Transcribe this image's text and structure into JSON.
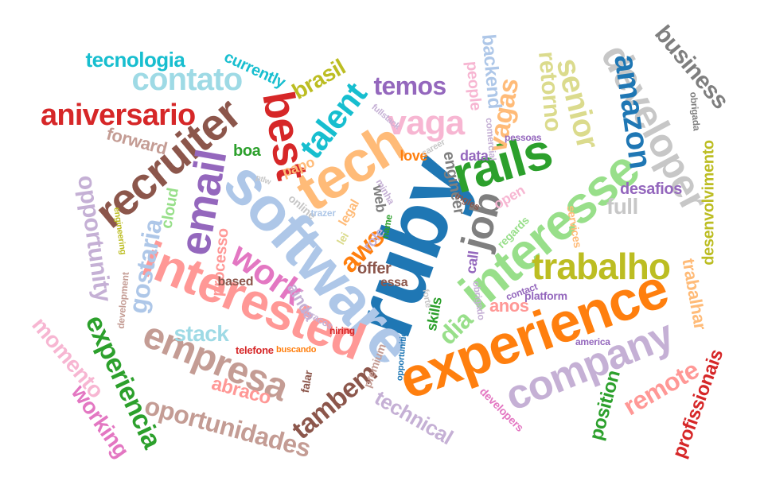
{
  "words": [
    {
      "text": "ruby",
      "color": "#1f77b4",
      "rotation": "vertical"
    },
    {
      "text": "software",
      "color": "#aec7e8",
      "rotation": "horizontal-tilt"
    },
    {
      "text": "experience",
      "color": "#ff7f0e",
      "rotation": "horizontal-tilt"
    },
    {
      "text": "interested",
      "color": "#ff9896",
      "rotation": "horizontal-tilt"
    },
    {
      "text": "tech",
      "color": "#ffbb78",
      "rotation": "horizontal-tilt"
    },
    {
      "text": "interesse",
      "color": "#98df8a",
      "rotation": "horizontal-tilt"
    },
    {
      "text": "rails",
      "color": "#2ca02c",
      "rotation": "horizontal-tilt"
    },
    {
      "text": "company",
      "color": "#c5b0d5",
      "rotation": "horizontal-tilt"
    },
    {
      "text": "recruiter",
      "color": "#8c564b",
      "rotation": "horizontal-tilt"
    },
    {
      "text": "empresa",
      "color": "#c49c94",
      "rotation": "horizontal-tilt"
    },
    {
      "text": "developer",
      "color": "#c7c7c7",
      "rotation": "vertical"
    },
    {
      "text": "best",
      "color": "#d62728",
      "rotation": "vertical"
    },
    {
      "text": "email",
      "color": "#9467bd",
      "rotation": "vertical"
    },
    {
      "text": "job",
      "color": "#7f7f7f",
      "rotation": "vertical"
    },
    {
      "text": "work",
      "color": "#e377c2",
      "rotation": "horizontal-tilt"
    },
    {
      "text": "vaga",
      "color": "#f7b6d2",
      "rotation": "horizontal"
    },
    {
      "text": "trabalho",
      "color": "#bcbd22",
      "rotation": "horizontal"
    },
    {
      "text": "senior",
      "color": "#dbdb8d",
      "rotation": "vertical"
    },
    {
      "text": "amazon",
      "color": "#1f77b4",
      "rotation": "vertical"
    },
    {
      "text": "talent",
      "color": "#17becf",
      "rotation": "horizontal-tilt"
    },
    {
      "text": "contato",
      "color": "#9edae5",
      "rotation": "horizontal"
    },
    {
      "text": "aniversario",
      "color": "#d62728",
      "rotation": "horizontal"
    },
    {
      "text": "oportunidades",
      "color": "#c49c94",
      "rotation": "horizontal-tilt"
    },
    {
      "text": "experiencia",
      "color": "#2ca02c",
      "rotation": "vertical"
    },
    {
      "text": "opportunity",
      "color": "#c5b0d5",
      "rotation": "vertical"
    },
    {
      "text": "gostaria",
      "color": "#aec7e8",
      "rotation": "vertical"
    },
    {
      "text": "tambem",
      "color": "#8c564b",
      "rotation": "horizontal-tilt"
    },
    {
      "text": "business",
      "color": "#7f7f7f",
      "rotation": "vertical"
    },
    {
      "text": "desenvolvimento",
      "color": "#bcbd22",
      "rotation": "vertical"
    },
    {
      "text": "remote",
      "color": "#ff9896",
      "rotation": "horizontal-tilt"
    },
    {
      "text": "momento",
      "color": "#f7b6d2",
      "rotation": "vertical"
    },
    {
      "text": "working",
      "color": "#e377c2",
      "rotation": "vertical"
    },
    {
      "text": "vagas",
      "color": "#ffbb78",
      "rotation": "vertical"
    },
    {
      "text": "retorno",
      "color": "#dbdb8d",
      "rotation": "vertical"
    },
    {
      "text": "tecnologia",
      "color": "#17becf",
      "rotation": "horizontal"
    },
    {
      "text": "temos",
      "color": "#9467bd",
      "rotation": "horizontal"
    },
    {
      "text": "brasil",
      "color": "#bcbd22",
      "rotation": "horizontal-tilt"
    },
    {
      "text": "backend",
      "color": "#aec7e8",
      "rotation": "vertical"
    },
    {
      "text": "people",
      "color": "#f7b6d2",
      "rotation": "vertical"
    },
    {
      "text": "aws",
      "color": "#ff7f0e",
      "rotation": "horizontal-tilt"
    },
    {
      "text": "dia",
      "color": "#98df8a",
      "rotation": "horizontal-tilt"
    },
    {
      "text": "stack",
      "color": "#9edae5",
      "rotation": "horizontal"
    },
    {
      "text": "trabalhar",
      "color": "#ffbb78",
      "rotation": "vertical"
    },
    {
      "text": "profissionais",
      "color": "#d62728",
      "rotation": "vertical"
    },
    {
      "text": "position",
      "color": "#2ca02c",
      "rotation": "vertical"
    },
    {
      "text": "technical",
      "color": "#c5b0d5",
      "rotation": "horizontal-tilt"
    },
    {
      "text": "abraco",
      "color": "#ff9896",
      "rotation": "horizontal-tilt"
    },
    {
      "text": "full",
      "color": "#c7c7c7",
      "rotation": "horizontal"
    },
    {
      "text": "desafios",
      "color": "#9467bd",
      "rotation": "horizontal"
    },
    {
      "text": "forward",
      "color": "#c49c94",
      "rotation": "horizontal-tilt"
    },
    {
      "text": "currently",
      "color": "#17becf",
      "rotation": "horizontal-tilt"
    },
    {
      "text": "cloud",
      "color": "#98df8a",
      "rotation": "vertical"
    },
    {
      "text": "processo",
      "color": "#ff9896",
      "rotation": "vertical"
    },
    {
      "text": "engineer",
      "color": "#7f7f7f",
      "rotation": "vertical"
    },
    {
      "text": "offer",
      "color": "#8c564b",
      "rotation": "horizontal"
    },
    {
      "text": "anos",
      "color": "#ff9896",
      "rotation": "horizontal"
    },
    {
      "text": "love",
      "color": "#ff7f0e",
      "rotation": "horizontal"
    },
    {
      "text": "data",
      "color": "#9467bd",
      "rotation": "horizontal"
    },
    {
      "text": "boa",
      "color": "#2ca02c",
      "rotation": "horizontal"
    },
    {
      "text": "papo",
      "color": "#ffbb78",
      "rotation": "horizontal-tilt"
    },
    {
      "text": "web",
      "color": "#7f7f7f",
      "rotation": "vertical"
    },
    {
      "text": "ainda",
      "color": "#c5b0d5",
      "rotation": "horizontal-tilt"
    },
    {
      "text": "based",
      "color": "#8c564b",
      "rotation": "horizontal"
    },
    {
      "text": "role",
      "color": "#c5b0d5",
      "rotation": "horizontal-tilt"
    },
    {
      "text": "call",
      "color": "#9467bd",
      "rotation": "vertical"
    },
    {
      "text": "skills",
      "color": "#2ca02c",
      "rotation": "vertical"
    },
    {
      "text": "essa",
      "color": "#8c564b",
      "rotation": "horizontal"
    },
    {
      "text": "online",
      "color": "#c7c7c7",
      "rotation": "horizontal-tilt"
    },
    {
      "text": "open",
      "color": "#f7b6d2",
      "rotation": "horizontal-tilt"
    },
    {
      "text": "telefone",
      "color": "#d62728",
      "rotation": "horizontal"
    },
    {
      "text": "buscando",
      "color": "#ff7f0e",
      "rotation": "horizontal"
    },
    {
      "text": "falar",
      "color": "#8c564b",
      "rotation": "vertical"
    },
    {
      "text": "premium",
      "color": "#c49c94",
      "rotation": "vertical"
    },
    {
      "text": "hiring",
      "color": "#d62728",
      "rotation": "horizontal"
    },
    {
      "text": "developers",
      "color": "#e377c2",
      "rotation": "horizontal-tilt"
    },
    {
      "text": "platform",
      "color": "#9467bd",
      "rotation": "horizontal"
    },
    {
      "text": "contact",
      "color": "#9467bd",
      "rotation": "horizontal-tilt"
    },
    {
      "text": "america",
      "color": "#9467bd",
      "rotation": "horizontal"
    },
    {
      "text": "services",
      "color": "#ffbb78",
      "rotation": "vertical"
    },
    {
      "text": "regards",
      "color": "#98df8a",
      "rotation": "horizontal-tilt"
    },
    {
      "text": "obrigado",
      "color": "#c5b0d5",
      "rotation": "vertical"
    },
    {
      "text": "obrigada",
      "color": "#7f7f7f",
      "rotation": "vertical"
    },
    {
      "text": "comercial",
      "color": "#c5b0d5",
      "rotation": "vertical"
    },
    {
      "text": "ingles",
      "color": "#8c564b",
      "rotation": "horizontal-tilt"
    },
    {
      "text": "pessoas",
      "color": "#9467bd",
      "rotation": "horizontal"
    },
    {
      "text": "career",
      "color": "#c7c7c7",
      "rotation": "horizontal-tilt"
    },
    {
      "text": "fullstack",
      "color": "#c5b0d5",
      "rotation": "horizontal-tilt"
    },
    {
      "text": "minha",
      "color": "#c5b0d5",
      "rotation": "horizontal-tilt"
    },
    {
      "text": "name",
      "color": "#2ca02c",
      "rotation": "vertical"
    },
    {
      "text": "legal",
      "color": "#ffbb78",
      "rotation": "horizontal-tilt"
    },
    {
      "text": "lei",
      "color": "#dbdb8d",
      "rotation": "horizontal-tilt"
    },
    {
      "text": "trazer",
      "color": "#aec7e8",
      "rotation": "horizontal"
    },
    {
      "text": "engineering",
      "color": "#bcbd22",
      "rotation": "vertical"
    },
    {
      "text": "development",
      "color": "#c49c94",
      "rotation": "vertical"
    },
    {
      "text": "abracos",
      "color": "#c5b0d5",
      "rotation": "horizontal-tilt"
    },
    {
      "text": "opportunities",
      "color": "#1f77b4",
      "rotation": "vertical"
    },
    {
      "text": "ptlw",
      "color": "#c7c7c7",
      "rotation": "horizontal-tilt"
    },
    {
      "text": "forte",
      "color": "#c7c7c7",
      "rotation": "vertical"
    }
  ]
}
